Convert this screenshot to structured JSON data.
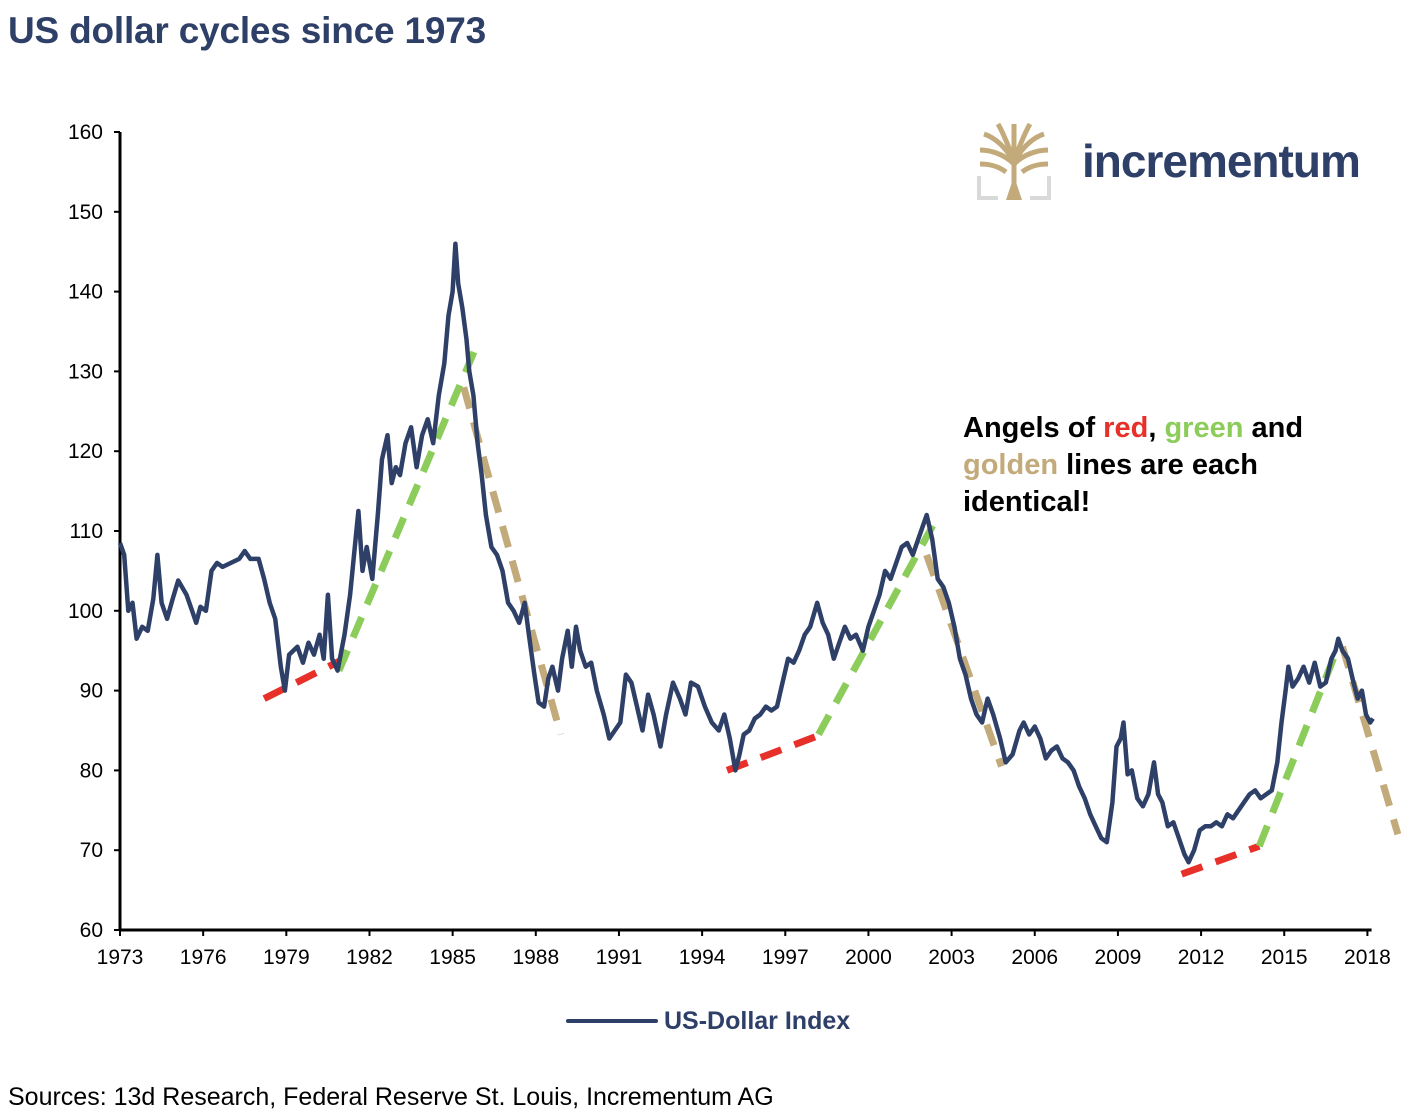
{
  "title": "US dollar cycles since 1973",
  "logo": {
    "text": "incrementum",
    "icon": "tree-icon",
    "colors": {
      "gold": "#c2aa7a",
      "navy": "#2e4068",
      "gray": "#d9d9d9"
    }
  },
  "annotation": {
    "parts": [
      {
        "text": "Angels of ",
        "color": "black"
      },
      {
        "text": "red",
        "color": "red"
      },
      {
        "text": ", ",
        "color": "black"
      },
      {
        "text": "green",
        "color": "green"
      },
      {
        "text": " and",
        "color": "black"
      },
      {
        "text": "golden",
        "color": "gold"
      },
      {
        "text": " lines are each",
        "color": "black"
      },
      {
        "text": "identical!",
        "color": "black"
      }
    ]
  },
  "legend": {
    "label": "US-Dollar Index",
    "color": "#2e4068"
  },
  "sources": "Sources: 13d Research, Federal Reserve St. Louis, Incrementum AG",
  "chart_data": {
    "type": "line",
    "title": "US dollar cycles since 1973",
    "xlabel": "",
    "ylabel": "",
    "xlim": [
      1973,
      2019
    ],
    "ylim": [
      60,
      160
    ],
    "y_ticks": [
      60,
      70,
      80,
      90,
      100,
      110,
      120,
      130,
      140,
      150,
      160
    ],
    "x_ticks": [
      "1973",
      "1976",
      "1979",
      "1982",
      "1985",
      "1988",
      "1991",
      "1994",
      "1997",
      "2000",
      "2003",
      "2006",
      "2009",
      "2012",
      "2015",
      "2018"
    ],
    "grid": false,
    "legend_position": "bottom-center",
    "series": [
      {
        "name": "US-Dollar Index",
        "color": "#2e4068",
        "points": [
          [
            1973.0,
            108.5
          ],
          [
            1973.15,
            107
          ],
          [
            1973.3,
            100
          ],
          [
            1973.45,
            101
          ],
          [
            1973.6,
            96.5
          ],
          [
            1973.8,
            98
          ],
          [
            1974.0,
            97.5
          ],
          [
            1974.2,
            101.5
          ],
          [
            1974.35,
            107
          ],
          [
            1974.5,
            101
          ],
          [
            1974.7,
            99
          ],
          [
            1974.9,
            101.5
          ],
          [
            1975.1,
            103.8
          ],
          [
            1975.4,
            102
          ],
          [
            1975.6,
            100
          ],
          [
            1975.75,
            98.5
          ],
          [
            1975.9,
            100.5
          ],
          [
            1976.1,
            100
          ],
          [
            1976.3,
            105
          ],
          [
            1976.5,
            106
          ],
          [
            1976.7,
            105.5
          ],
          [
            1977.0,
            106
          ],
          [
            1977.3,
            106.5
          ],
          [
            1977.5,
            107.5
          ],
          [
            1977.7,
            106.5
          ],
          [
            1978.0,
            106.5
          ],
          [
            1978.2,
            104
          ],
          [
            1978.4,
            101
          ],
          [
            1978.6,
            99
          ],
          [
            1978.8,
            93
          ],
          [
            1978.95,
            90
          ],
          [
            1979.1,
            94.5
          ],
          [
            1979.4,
            95.5
          ],
          [
            1979.6,
            93.5
          ],
          [
            1979.8,
            96
          ],
          [
            1980.0,
            94.5
          ],
          [
            1980.2,
            97
          ],
          [
            1980.35,
            94
          ],
          [
            1980.5,
            102
          ],
          [
            1980.65,
            94
          ],
          [
            1980.85,
            92.5
          ],
          [
            1981.1,
            97
          ],
          [
            1981.3,
            102
          ],
          [
            1981.5,
            109
          ],
          [
            1981.6,
            112.5
          ],
          [
            1981.75,
            105
          ],
          [
            1981.9,
            108
          ],
          [
            1982.1,
            104
          ],
          [
            1982.3,
            112
          ],
          [
            1982.45,
            119
          ],
          [
            1982.65,
            122
          ],
          [
            1982.8,
            116
          ],
          [
            1982.95,
            118
          ],
          [
            1983.1,
            117
          ],
          [
            1983.3,
            121
          ],
          [
            1983.5,
            123
          ],
          [
            1983.7,
            118
          ],
          [
            1983.9,
            122
          ],
          [
            1984.1,
            124
          ],
          [
            1984.3,
            121
          ],
          [
            1984.5,
            127
          ],
          [
            1984.7,
            131
          ],
          [
            1984.85,
            137
          ],
          [
            1985.0,
            140
          ],
          [
            1985.1,
            146
          ],
          [
            1985.2,
            141
          ],
          [
            1985.35,
            138
          ],
          [
            1985.5,
            134
          ],
          [
            1985.6,
            130
          ],
          [
            1985.75,
            127
          ],
          [
            1985.9,
            121
          ],
          [
            1986.05,
            117
          ],
          [
            1986.2,
            112
          ],
          [
            1986.4,
            108
          ],
          [
            1986.6,
            107
          ],
          [
            1986.8,
            105
          ],
          [
            1987.0,
            101
          ],
          [
            1987.2,
            100
          ],
          [
            1987.4,
            98.5
          ],
          [
            1987.6,
            101
          ],
          [
            1987.75,
            97
          ],
          [
            1987.95,
            92
          ],
          [
            1988.1,
            88.5
          ],
          [
            1988.3,
            88
          ],
          [
            1988.45,
            91.5
          ],
          [
            1988.6,
            93
          ],
          [
            1988.8,
            90
          ],
          [
            1988.95,
            94
          ],
          [
            1989.15,
            97.5
          ],
          [
            1989.3,
            93
          ],
          [
            1989.45,
            98
          ],
          [
            1989.6,
            95
          ],
          [
            1989.8,
            93
          ],
          [
            1990.0,
            93.5
          ],
          [
            1990.2,
            90
          ],
          [
            1990.45,
            87
          ],
          [
            1990.65,
            84
          ],
          [
            1990.85,
            85
          ],
          [
            1991.05,
            86
          ],
          [
            1991.25,
            92
          ],
          [
            1991.45,
            91
          ],
          [
            1991.65,
            88
          ],
          [
            1991.85,
            85
          ],
          [
            1992.05,
            89.5
          ],
          [
            1992.25,
            87
          ],
          [
            1992.5,
            83
          ],
          [
            1992.7,
            87
          ],
          [
            1992.95,
            91
          ],
          [
            1993.2,
            89
          ],
          [
            1993.4,
            87
          ],
          [
            1993.6,
            91
          ],
          [
            1993.85,
            90.5
          ],
          [
            1994.1,
            88
          ],
          [
            1994.35,
            86
          ],
          [
            1994.6,
            85
          ],
          [
            1994.8,
            87
          ],
          [
            1995.0,
            84
          ],
          [
            1995.2,
            80
          ],
          [
            1995.35,
            82
          ],
          [
            1995.5,
            84.5
          ],
          [
            1995.7,
            85
          ],
          [
            1995.9,
            86.5
          ],
          [
            1996.1,
            87
          ],
          [
            1996.3,
            88
          ],
          [
            1996.5,
            87.5
          ],
          [
            1996.7,
            88
          ],
          [
            1996.9,
            91
          ],
          [
            1997.1,
            94
          ],
          [
            1997.3,
            93.5
          ],
          [
            1997.5,
            95
          ],
          [
            1997.7,
            97
          ],
          [
            1997.9,
            98
          ],
          [
            1998.15,
            101
          ],
          [
            1998.35,
            98.5
          ],
          [
            1998.55,
            97
          ],
          [
            1998.75,
            94
          ],
          [
            1998.95,
            96
          ],
          [
            1999.15,
            98
          ],
          [
            1999.35,
            96.5
          ],
          [
            1999.55,
            97
          ],
          [
            1999.8,
            95
          ],
          [
            2000.0,
            98
          ],
          [
            2000.2,
            100
          ],
          [
            2000.4,
            102
          ],
          [
            2000.6,
            105
          ],
          [
            2000.8,
            104
          ],
          [
            2001.0,
            106
          ],
          [
            2001.2,
            108
          ],
          [
            2001.4,
            108.5
          ],
          [
            2001.6,
            107
          ],
          [
            2001.8,
            109
          ],
          [
            2002.0,
            111
          ],
          [
            2002.1,
            112
          ],
          [
            2002.3,
            109
          ],
          [
            2002.5,
            104
          ],
          [
            2002.7,
            103
          ],
          [
            2002.9,
            101
          ],
          [
            2003.1,
            98
          ],
          [
            2003.3,
            94
          ],
          [
            2003.5,
            92
          ],
          [
            2003.7,
            89
          ],
          [
            2003.9,
            87
          ],
          [
            2004.1,
            86
          ],
          [
            2004.3,
            89
          ],
          [
            2004.5,
            87
          ],
          [
            2004.75,
            84
          ],
          [
            2004.95,
            81
          ],
          [
            2005.2,
            82
          ],
          [
            2005.45,
            85
          ],
          [
            2005.6,
            86
          ],
          [
            2005.8,
            84.5
          ],
          [
            2006.0,
            85.5
          ],
          [
            2006.2,
            84
          ],
          [
            2006.4,
            81.5
          ],
          [
            2006.6,
            82.5
          ],
          [
            2006.8,
            83
          ],
          [
            2007.0,
            81.5
          ],
          [
            2007.2,
            81
          ],
          [
            2007.4,
            80
          ],
          [
            2007.6,
            78
          ],
          [
            2007.8,
            76.5
          ],
          [
            2008.0,
            74.5
          ],
          [
            2008.2,
            73
          ],
          [
            2008.4,
            71.5
          ],
          [
            2008.6,
            71
          ],
          [
            2008.8,
            76
          ],
          [
            2008.95,
            83
          ],
          [
            2009.1,
            84
          ],
          [
            2009.2,
            86
          ],
          [
            2009.35,
            79.5
          ],
          [
            2009.5,
            80
          ],
          [
            2009.7,
            76.5
          ],
          [
            2009.9,
            75.5
          ],
          [
            2010.1,
            77
          ],
          [
            2010.3,
            81
          ],
          [
            2010.45,
            77
          ],
          [
            2010.6,
            76
          ],
          [
            2010.8,
            73
          ],
          [
            2011.0,
            73.5
          ],
          [
            2011.2,
            71.5
          ],
          [
            2011.4,
            69.5
          ],
          [
            2011.55,
            68.5
          ],
          [
            2011.75,
            70
          ],
          [
            2011.95,
            72.5
          ],
          [
            2012.15,
            73
          ],
          [
            2012.35,
            73
          ],
          [
            2012.55,
            73.5
          ],
          [
            2012.75,
            73
          ],
          [
            2012.95,
            74.5
          ],
          [
            2013.15,
            74
          ],
          [
            2013.35,
            75
          ],
          [
            2013.55,
            76
          ],
          [
            2013.75,
            77
          ],
          [
            2013.95,
            77.5
          ],
          [
            2014.15,
            76.5
          ],
          [
            2014.35,
            77
          ],
          [
            2014.55,
            77.5
          ],
          [
            2014.75,
            81
          ],
          [
            2014.9,
            86
          ],
          [
            2015.05,
            90
          ],
          [
            2015.15,
            93
          ],
          [
            2015.3,
            90.5
          ],
          [
            2015.5,
            91.5
          ],
          [
            2015.7,
            93
          ],
          [
            2015.9,
            91
          ],
          [
            2016.1,
            93.5
          ],
          [
            2016.3,
            90.5
          ],
          [
            2016.5,
            91
          ],
          [
            2016.7,
            94
          ],
          [
            2016.85,
            95
          ],
          [
            2016.95,
            96.5
          ],
          [
            2017.1,
            95
          ],
          [
            2017.3,
            94
          ],
          [
            2017.5,
            91
          ],
          [
            2017.65,
            89
          ],
          [
            2017.8,
            90
          ],
          [
            2017.95,
            87
          ],
          [
            2018.1,
            86
          ],
          [
            2018.2,
            86.5
          ]
        ]
      }
    ],
    "trend_lines": [
      {
        "color": "red",
        "hex": "#e8302a",
        "style": "dashed",
        "points": [
          [
            1978.2,
            89
          ],
          [
            1981.1,
            94
          ]
        ]
      },
      {
        "color": "green",
        "hex": "#8ccc5a",
        "style": "dashed",
        "points": [
          [
            1980.9,
            92.5
          ],
          [
            1985.9,
            133.5
          ]
        ]
      },
      {
        "color": "gold",
        "hex": "#c2aa7a",
        "style": "dashed",
        "points": [
          [
            1985.4,
            128
          ],
          [
            1988.9,
            84.5
          ]
        ]
      },
      {
        "color": "red",
        "hex": "#e8302a",
        "style": "dashed",
        "points": [
          [
            1994.9,
            80
          ],
          [
            1998.3,
            84.5
          ]
        ]
      },
      {
        "color": "green",
        "hex": "#8ccc5a",
        "style": "dashed",
        "points": [
          [
            1998.2,
            84.5
          ],
          [
            2002.45,
            111.5
          ]
        ]
      },
      {
        "color": "gold",
        "hex": "#c2aa7a",
        "style": "dashed",
        "points": [
          [
            2002.1,
            107
          ],
          [
            2004.8,
            80.5
          ]
        ]
      },
      {
        "color": "red",
        "hex": "#e8302a",
        "style": "dashed",
        "points": [
          [
            2011.3,
            67
          ],
          [
            2014.1,
            70.5
          ]
        ]
      },
      {
        "color": "green",
        "hex": "#8ccc5a",
        "style": "dashed",
        "points": [
          [
            2014.1,
            70.5
          ],
          [
            2017.0,
            96
          ]
        ]
      },
      {
        "color": "gold",
        "hex": "#c2aa7a",
        "style": "dashed",
        "points": [
          [
            2017.1,
            95.5
          ],
          [
            2019.1,
            72
          ]
        ]
      }
    ]
  }
}
